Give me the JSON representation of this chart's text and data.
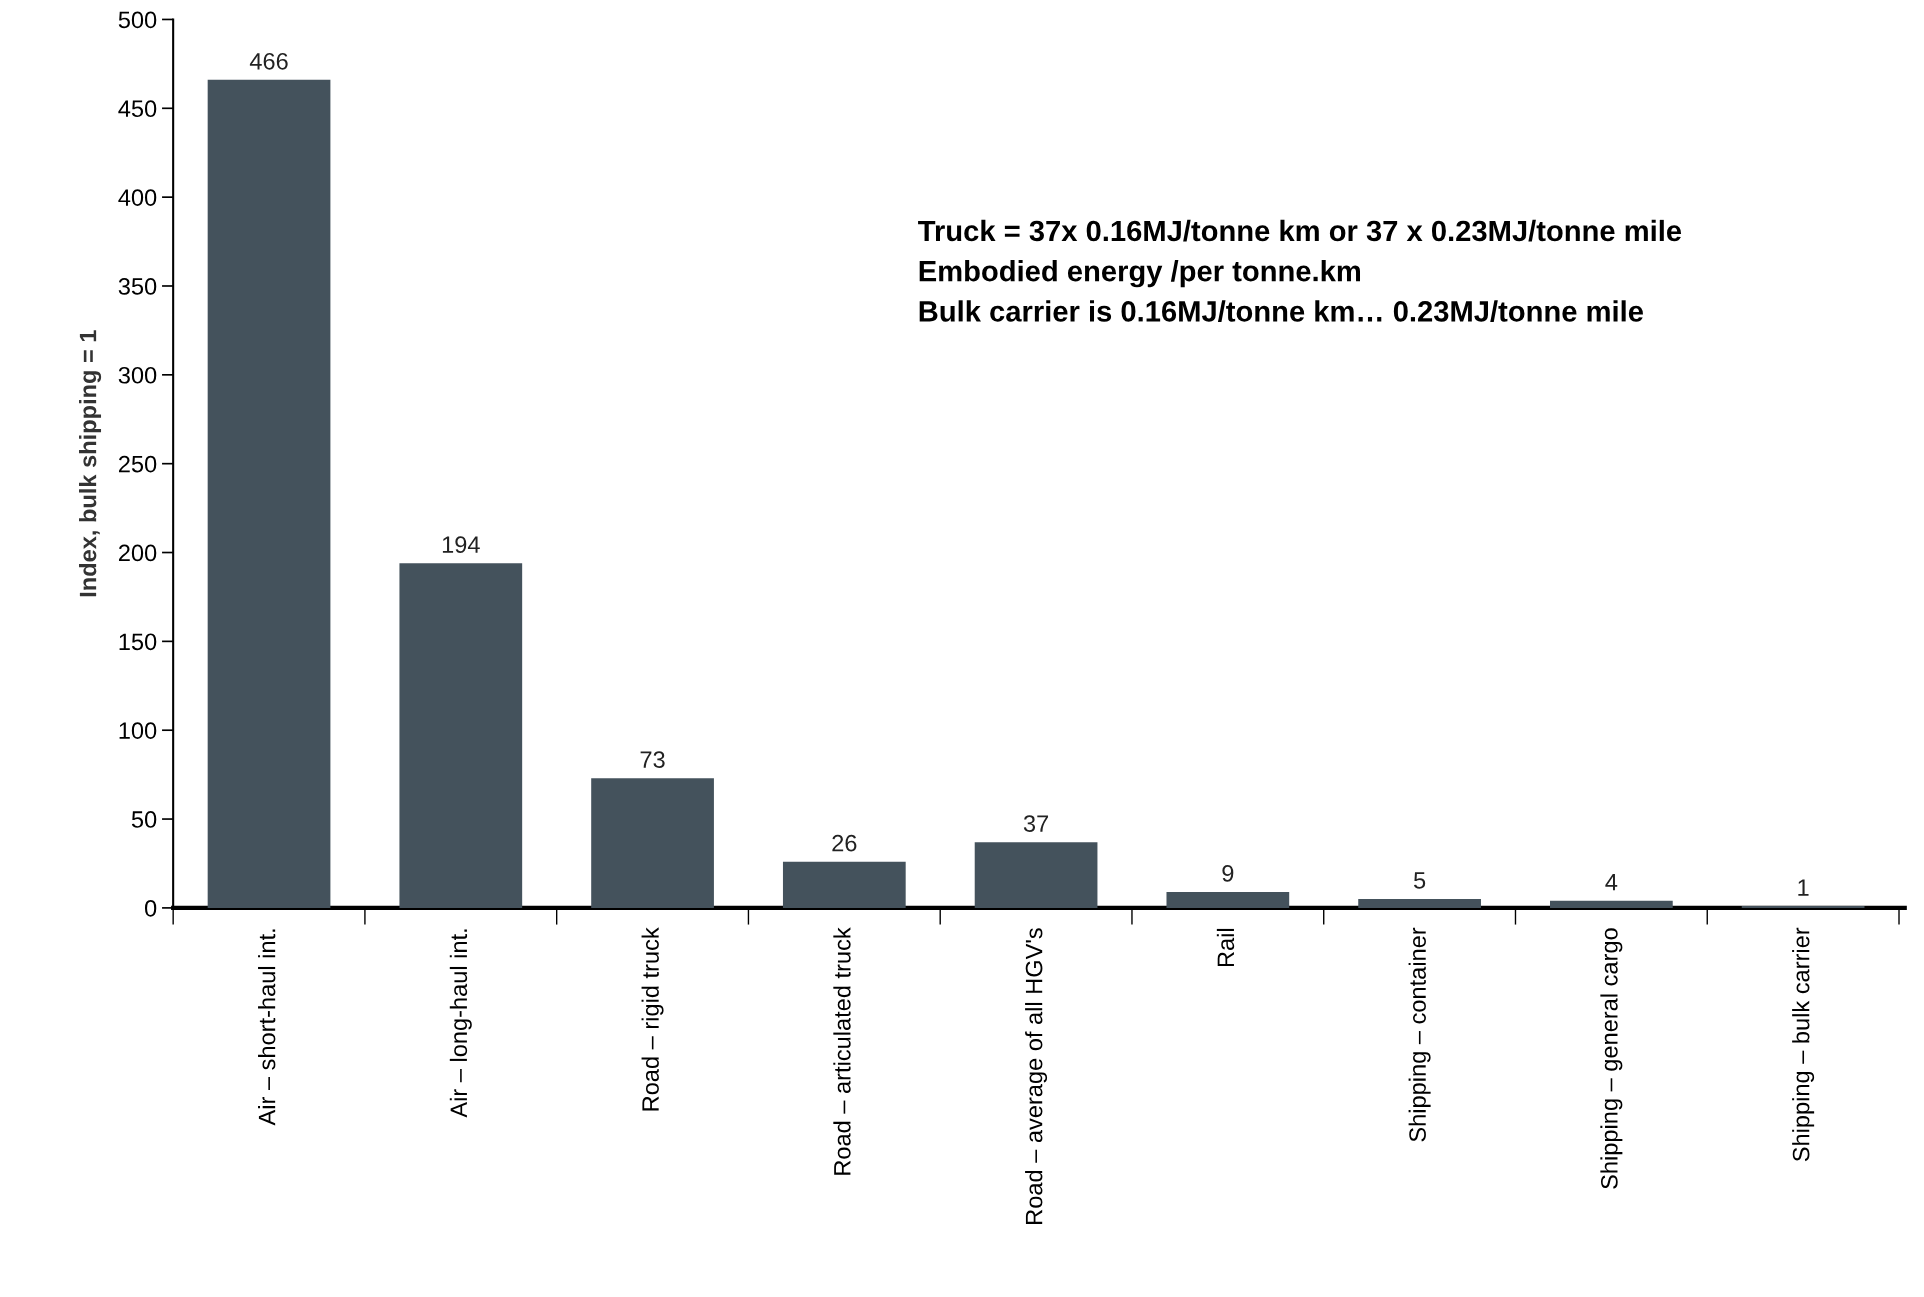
{
  "chart_data": {
    "type": "bar",
    "categories": [
      "Air – short-haul int.",
      "Air – long-haul int.",
      "Road – rigid truck",
      "Road – articulated truck",
      "Road – average of all HGV's",
      "Rail",
      "Shipping – container",
      "Shipping – general cargo",
      "Shipping – bulk carrier"
    ],
    "values": [
      466,
      194,
      73,
      26,
      37,
      9,
      5,
      4,
      1
    ],
    "color": "#44525c",
    "ylabel": "Index, bulk shipping = 1",
    "ylim": [
      0,
      500
    ],
    "yticks": [
      0,
      50,
      100,
      150,
      200,
      250,
      300,
      350,
      400,
      450,
      500
    ],
    "data_labels": true,
    "grid": false,
    "legend": false,
    "annotations": [
      "Truck = 37x 0.16MJ/tonne km or 37 x 0.23MJ/tonne mile",
      "Embodied energy /per tonne.km",
      "Bulk carrier is 0.16MJ/tonne km… 0.23MJ/tonne mile"
    ]
  }
}
